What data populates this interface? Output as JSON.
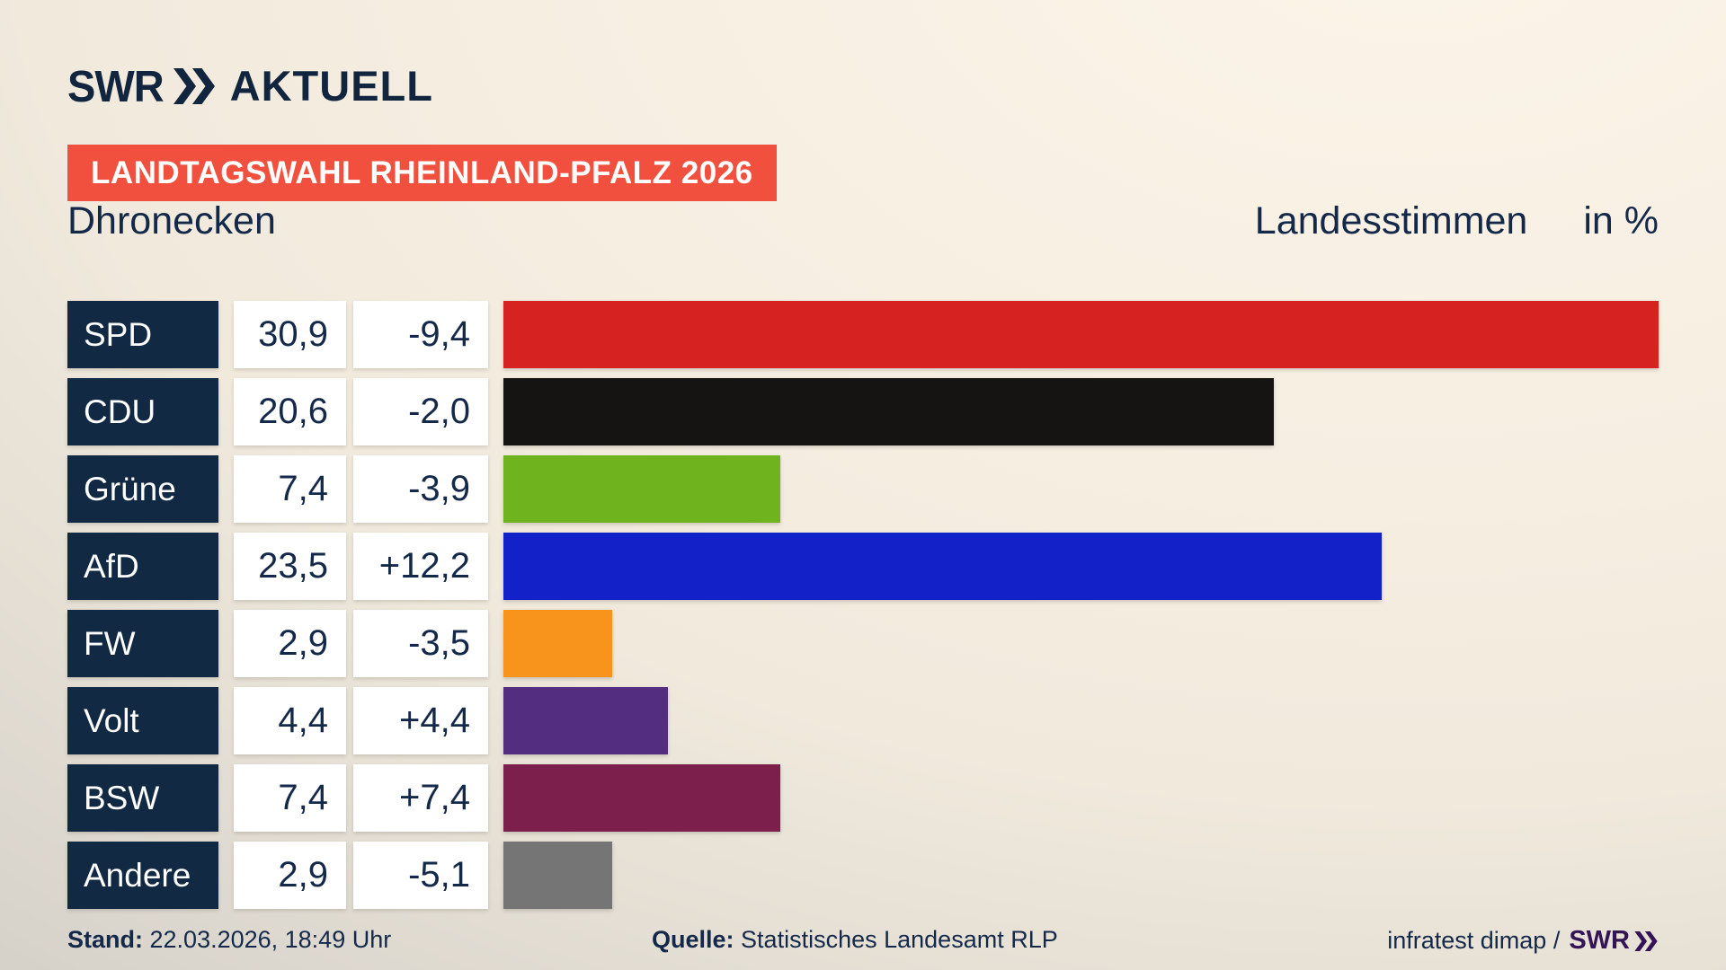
{
  "header": {
    "brand_swr": "SWR",
    "brand_aktuell": "AKTUELL",
    "banner": "LANDTAGSWAHL RHEINLAND-PFALZ 2026",
    "municipality": "Dhronecken",
    "measure": "Landesstimmen",
    "unit": "in %"
  },
  "chart_data": {
    "type": "bar",
    "title": "Landtagswahl Rheinland-Pfalz 2026 – Dhronecken – Landesstimmen in %",
    "orientation": "horizontal",
    "xlim": [
      0,
      30.9
    ],
    "categories": [
      "SPD",
      "CDU",
      "Grüne",
      "AfD",
      "FW",
      "Volt",
      "BSW",
      "Andere"
    ],
    "values": [
      30.9,
      20.6,
      7.4,
      23.5,
      2.9,
      4.4,
      7.4,
      2.9
    ],
    "value_labels": [
      "30,9",
      "20,6",
      "7,4",
      "23,5",
      "2,9",
      "4,4",
      "7,4",
      "2,9"
    ],
    "change_labels": [
      "-9,4",
      "-2,0",
      "-3,9",
      "+12,2",
      "-3,5",
      "+4,4",
      "+7,4",
      "-5,1"
    ],
    "bar_colors": [
      "#d62221",
      "#161412",
      "#6fb41e",
      "#1222c8",
      "#f8941c",
      "#522d80",
      "#7d1f4d",
      "#757575"
    ]
  },
  "footer": {
    "stand_label": "Stand:",
    "stand_value": "22.03.2026, 18:49 Uhr",
    "quelle_label": "Quelle:",
    "quelle_value": "Statistisches Landesamt RLP",
    "credit_text": "infratest dimap /",
    "credit_brand": "SWR"
  },
  "colors": {
    "navy": "#14294a",
    "label_box": "#122943",
    "banner_red": "#f2503e",
    "brand_purple": "#331457",
    "background_light": "#faf3e8",
    "background_dark": "#c8c5bf"
  }
}
